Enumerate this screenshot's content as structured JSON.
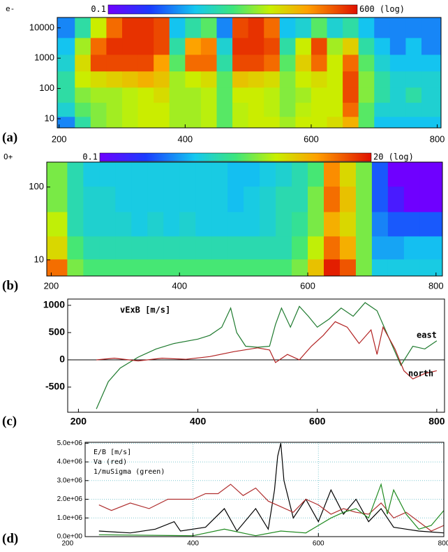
{
  "chart_data": [
    {
      "type": "heatmap",
      "panel_label": "(a)",
      "label": "e-",
      "log_y": true,
      "clim": [
        {
          "value": 0.1,
          "label": "0.1"
        },
        {
          "value": 600,
          "label": "600 (log)"
        }
      ],
      "xlim": [
        197,
        806
      ],
      "ylim": [
        5,
        22000
      ],
      "xticks": [
        200,
        400,
        600,
        800
      ],
      "yticks": [
        10,
        100,
        1000,
        10000
      ],
      "x": [
        212.5,
        237.5,
        262.5,
        287.5,
        312.5,
        337.5,
        362.5,
        387.5,
        412.5,
        437.5,
        462.5,
        487.5,
        512.5,
        537.5,
        562.5,
        587.5,
        612.5,
        637.5,
        662.5,
        687.5,
        712.5,
        737.5,
        762.5,
        787.5
      ],
      "y": [
        7,
        20,
        60,
        200,
        700,
        2500,
        9000
      ],
      "z": [
        [
          1,
          5,
          15,
          20,
          25,
          30,
          30,
          20,
          20,
          25,
          10,
          25,
          30,
          30,
          20,
          30,
          30,
          40,
          80,
          10,
          2,
          2,
          2,
          2
        ],
        [
          3,
          10,
          15,
          20,
          25,
          30,
          30,
          20,
          20,
          25,
          10,
          25,
          30,
          25,
          15,
          25,
          30,
          30,
          200,
          10,
          3,
          3,
          3,
          3
        ],
        [
          5,
          15,
          20,
          20,
          25,
          30,
          40,
          20,
          20,
          25,
          10,
          30,
          30,
          25,
          15,
          20,
          30,
          30,
          300,
          15,
          5,
          3,
          5,
          3
        ],
        [
          5,
          30,
          40,
          50,
          60,
          80,
          60,
          20,
          30,
          40,
          10,
          60,
          50,
          40,
          15,
          30,
          40,
          30,
          300,
          15,
          5,
          3,
          3,
          3
        ],
        [
          3,
          40,
          300,
          300,
          300,
          300,
          100,
          10,
          200,
          200,
          5,
          300,
          300,
          200,
          10,
          50,
          200,
          30,
          200,
          10,
          3,
          2,
          2,
          2
        ],
        [
          2,
          20,
          200,
          400,
          400,
          400,
          300,
          5,
          100,
          150,
          3,
          400,
          400,
          300,
          5,
          30,
          300,
          20,
          50,
          5,
          2,
          1,
          2,
          1
        ],
        [
          1,
          5,
          30,
          200,
          400,
          400,
          300,
          2,
          5,
          10,
          1,
          300,
          400,
          200,
          2,
          3,
          10,
          3,
          5,
          2,
          1,
          1,
          1,
          1
        ]
      ]
    },
    {
      "type": "heatmap",
      "panel_label": "(b)",
      "label": "O+",
      "log_y": true,
      "clim": [
        {
          "value": 0.1,
          "label": "0.1"
        },
        {
          "value": 20,
          "label": "20 (log)"
        }
      ],
      "xlim": [
        193,
        810
      ],
      "ylim": [
        6,
        220
      ],
      "xticks": [
        200,
        400,
        600,
        800
      ],
      "yticks": [
        10,
        100
      ],
      "x": [
        212.5,
        237.5,
        262.5,
        287.5,
        312.5,
        337.5,
        362.5,
        387.5,
        412.5,
        437.5,
        462.5,
        487.5,
        512.5,
        537.5,
        562.5,
        587.5,
        612.5,
        637.5,
        662.5,
        687.5,
        712.5,
        737.5,
        762.5,
        787.5
      ],
      "y": [
        7,
        15,
        30,
        70,
        150
      ],
      "z": [
        [
          10,
          2,
          1.5,
          1.5,
          1.5,
          1.5,
          1.5,
          1.5,
          1.5,
          1.5,
          1.5,
          1.5,
          1.5,
          1.5,
          1.5,
          2,
          5,
          18,
          12,
          2,
          0.7,
          0.7,
          0.7,
          0.7
        ],
        [
          4,
          1.5,
          1,
          1,
          1,
          1,
          1,
          1,
          1,
          1,
          1,
          1,
          1,
          1,
          1,
          1.5,
          3,
          10,
          6,
          2,
          0.5,
          0.5,
          0.6,
          0.6
        ],
        [
          3,
          1,
          0.8,
          0.8,
          0.8,
          0.7,
          0.8,
          0.7,
          0.8,
          0.7,
          0.7,
          0.7,
          0.7,
          0.8,
          1,
          1.2,
          2,
          6,
          4,
          2,
          0.4,
          0.3,
          0.3,
          0.3
        ],
        [
          2,
          1,
          0.8,
          0.8,
          0.7,
          0.7,
          0.7,
          0.7,
          0.7,
          0.7,
          0.7,
          0.6,
          0.7,
          0.8,
          1,
          1,
          2,
          10,
          5,
          2,
          0.3,
          0.15,
          0.1,
          0.1
        ],
        [
          2,
          1,
          0.7,
          0.7,
          0.7,
          0.7,
          0.7,
          0.7,
          0.7,
          0.7,
          0.7,
          0.6,
          0.6,
          0.7,
          0.8,
          1,
          1.5,
          8,
          4,
          2,
          0.3,
          0.1,
          0.1,
          0.1
        ]
      ]
    },
    {
      "type": "line",
      "panel_label": "(c)",
      "title": "vExB [m/s]",
      "reference_line": 0,
      "xlim": [
        182,
        813
      ],
      "ylim": [
        -962,
        1115
      ],
      "xticks": [
        200,
        400,
        600,
        800
      ],
      "yticks": [
        -500,
        0,
        500,
        1000
      ],
      "series": [
        {
          "name": "east",
          "color": "#1e7a2e",
          "x": [
            230,
            250,
            270,
            300,
            330,
            360,
            400,
            420,
            440,
            455,
            465,
            480,
            500,
            520,
            530,
            540,
            555,
            570,
            585,
            600,
            620,
            640,
            660,
            680,
            700,
            720,
            740,
            760,
            780,
            800
          ],
          "values": [
            -900,
            -400,
            -150,
            50,
            200,
            300,
            380,
            450,
            600,
            950,
            500,
            250,
            230,
            250,
            650,
            950,
            600,
            980,
            800,
            600,
            750,
            950,
            800,
            1050,
            900,
            400,
            -100,
            250,
            200,
            350
          ]
        },
        {
          "name": "north",
          "color": "#b22222",
          "x": [
            230,
            260,
            300,
            340,
            380,
            420,
            460,
            500,
            520,
            530,
            550,
            570,
            590,
            610,
            630,
            650,
            670,
            690,
            700,
            710,
            730,
            745,
            760,
            780,
            800
          ],
          "values": [
            0,
            30,
            -20,
            30,
            10,
            60,
            150,
            220,
            180,
            -50,
            100,
            0,
            250,
            450,
            700,
            600,
            300,
            550,
            100,
            600,
            200,
            -200,
            -350,
            -250,
            -200
          ]
        }
      ]
    },
    {
      "type": "line",
      "panel_label": "(d)",
      "grid": true,
      "xlim": [
        228,
        800
      ],
      "ylim": [
        0,
        5050000
      ],
      "xticks": [
        200,
        400,
        600,
        800
      ],
      "yticks": [
        {
          "value": 0,
          "label": "0.0e+00"
        },
        {
          "value": 1000000,
          "label": "1.0e+06"
        },
        {
          "value": 2000000,
          "label": "2.0e+06"
        },
        {
          "value": 3000000,
          "label": "3.0e+06"
        },
        {
          "value": 4000000,
          "label": "4.0e+06"
        },
        {
          "value": 5000000,
          "label": "5.0e+06"
        }
      ],
      "series": [
        {
          "name": "E/B [m/s]",
          "color": "#000000",
          "x": [
            250,
            300,
            340,
            370,
            380,
            420,
            450,
            470,
            500,
            520,
            530,
            535,
            540,
            545,
            560,
            580,
            600,
            620,
            640,
            660,
            680,
            700,
            720,
            740,
            760,
            800
          ],
          "values": [
            300000,
            200000,
            400000,
            800000,
            300000,
            500000,
            1500000,
            300000,
            1500000,
            400000,
            2500000,
            4300000,
            5000000,
            3000000,
            1000000,
            2000000,
            800000,
            2500000,
            1200000,
            2000000,
            800000,
            1500000,
            500000,
            400000,
            300000,
            200000
          ]
        },
        {
          "name": "Va (red)",
          "color": "#b03030",
          "x": [
            250,
            270,
            300,
            330,
            360,
            400,
            420,
            440,
            460,
            480,
            500,
            520,
            540,
            560,
            580,
            600,
            620,
            640,
            660,
            680,
            700,
            720,
            740,
            760,
            780,
            800
          ],
          "values": [
            1700000,
            1400000,
            1800000,
            1500000,
            2000000,
            2000000,
            2300000,
            2300000,
            2800000,
            2200000,
            2600000,
            1900000,
            1600000,
            1300000,
            2000000,
            1700000,
            1200000,
            1500000,
            1300000,
            1200000,
            1800000,
            1000000,
            1300000,
            800000,
            300000,
            600000
          ]
        },
        {
          "name": "1/muSigma (green)",
          "color": "#1f8a1f",
          "x": [
            250,
            400,
            450,
            500,
            540,
            580,
            600,
            620,
            640,
            660,
            680,
            700,
            710,
            720,
            740,
            760,
            780,
            800
          ],
          "values": [
            100000,
            50000,
            400000,
            50000,
            300000,
            200000,
            600000,
            1000000,
            1300000,
            1500000,
            1000000,
            2800000,
            1200000,
            2500000,
            1200000,
            400000,
            600000,
            1400000
          ]
        }
      ]
    }
  ]
}
